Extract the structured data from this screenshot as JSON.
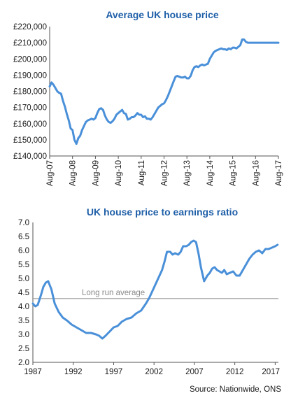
{
  "colors": {
    "title": "#1f5fa8",
    "line": "#4a90d9",
    "axis": "#555555",
    "reference": "#999999",
    "annotation": "#8a8a8a"
  },
  "chart_data": [
    {
      "type": "line",
      "title": "Average UK house price",
      "xlabel": "",
      "ylabel": "",
      "ylim": [
        140000,
        220000
      ],
      "y_ticks": [
        140000,
        150000,
        160000,
        170000,
        180000,
        190000,
        200000,
        210000,
        220000
      ],
      "y_tick_labels": [
        "£140,000",
        "£150,000",
        "£160,000",
        "£170,000",
        "£180,000",
        "£190,000",
        "£200,000",
        "£210,000",
        "£220,000"
      ],
      "x_tick_labels": [
        "Aug-07",
        "Aug-08",
        "Aug-09",
        "Aug-10",
        "Aug-11",
        "Aug-12",
        "Aug-13",
        "Aug-14",
        "Aug-15",
        "Aug-16",
        "Aug-17"
      ],
      "x_tick_dates": [
        "2007-08",
        "2008-08",
        "2009-08",
        "2010-08",
        "2011-08",
        "2012-08",
        "2013-08",
        "2014-08",
        "2015-08",
        "2016-08",
        "2017-08"
      ],
      "x_tick_positions": [
        0,
        12,
        24,
        36,
        48,
        60,
        72,
        84,
        96,
        108,
        120
      ],
      "xlim": [
        0,
        120
      ],
      "grid": false,
      "series": [
        {
          "name": "",
          "x": [
            0,
            1,
            2,
            3,
            4,
            5,
            6,
            7,
            8,
            9,
            10,
            11,
            12,
            13,
            14,
            15,
            16,
            17,
            18,
            19,
            20,
            21,
            22,
            23,
            24,
            25,
            26,
            27,
            28,
            29,
            30,
            31,
            32,
            33,
            34,
            35,
            36,
            37,
            38,
            39,
            40,
            41,
            42,
            43,
            44,
            45,
            46,
            47,
            48,
            49,
            50,
            51,
            52,
            53,
            54,
            55,
            56,
            57,
            58,
            59,
            60,
            61,
            62,
            63,
            64,
            65,
            66,
            67,
            68,
            69,
            70,
            71,
            72,
            73,
            74,
            75,
            76,
            77,
            78,
            79,
            80,
            81,
            82,
            83,
            84,
            85,
            86,
            87,
            88,
            89,
            90,
            91,
            92,
            93,
            94,
            95,
            96,
            97,
            98,
            99,
            100,
            101,
            102,
            103,
            104,
            105,
            106,
            107,
            108,
            109,
            110,
            111,
            112,
            113,
            114,
            115,
            116,
            117,
            118,
            119,
            120
          ],
          "values": [
            183000,
            185500,
            184000,
            182000,
            180000,
            179000,
            178500,
            174000,
            170500,
            166000,
            162000,
            157000,
            156000,
            150000,
            147500,
            151000,
            152500,
            156000,
            158500,
            161000,
            162000,
            162500,
            163000,
            162500,
            163500,
            166500,
            169000,
            169500,
            168500,
            165000,
            162500,
            161000,
            160500,
            161500,
            163000,
            165500,
            166500,
            167500,
            168500,
            166500,
            166000,
            162500,
            163000,
            164000,
            164000,
            165000,
            166500,
            165500,
            165500,
            164000,
            164500,
            163000,
            163000,
            162500,
            164000,
            166000,
            168000,
            170000,
            171000,
            172000,
            172500,
            174500,
            177000,
            180000,
            183000,
            186000,
            189000,
            189500,
            189000,
            188500,
            188500,
            189000,
            188000,
            188000,
            189500,
            193000,
            195000,
            195500,
            195000,
            196000,
            196500,
            196000,
            196500,
            197000,
            200000,
            202000,
            204000,
            205000,
            205500,
            206000,
            206500,
            206000,
            206000,
            205500,
            206500,
            206000,
            207000,
            207000,
            206500,
            207500,
            208500,
            212000,
            212000,
            210500,
            210000,
            210000,
            210000,
            210000,
            210000,
            210000,
            210000,
            210000,
            210000,
            210000,
            210000,
            210000,
            210000,
            210000,
            210000,
            210000,
            210000
          ]
        }
      ]
    },
    {
      "type": "line",
      "title": "UK house price to earnings ratio",
      "xlabel": "",
      "ylabel": "",
      "ylim": [
        2.0,
        7.0
      ],
      "y_ticks": [
        2.0,
        2.5,
        3.0,
        3.5,
        4.0,
        4.5,
        5.0,
        5.5,
        6.0,
        6.5,
        7.0
      ],
      "y_tick_labels": [
        "2.0",
        "2.5",
        "3.0",
        "3.5",
        "4.0",
        "4.5",
        "5.0",
        "5.5",
        "6.0",
        "6.5",
        "7.0"
      ],
      "x_tick_labels": [
        "1987",
        "1992",
        "1997",
        "2002",
        "2007",
        "2012",
        "2017"
      ],
      "x_ticks": [
        1987,
        1992,
        1997,
        2002,
        2007,
        2012,
        2017
      ],
      "xlim": [
        1987,
        2017.4
      ],
      "grid": false,
      "reference_line": {
        "label": "Long run average",
        "value": 4.28
      },
      "series": [
        {
          "name": "",
          "x": [
            1987.0,
            1987.3,
            1987.6,
            1988.0,
            1988.3,
            1988.6,
            1988.9,
            1989.3,
            1989.7,
            1990.2,
            1990.7,
            1991.2,
            1991.8,
            1992.4,
            1993.0,
            1993.6,
            1994.2,
            1994.8,
            1995.2,
            1995.6,
            1996.0,
            1996.5,
            1997.0,
            1997.5,
            1998.0,
            1998.6,
            1999.2,
            1999.8,
            2000.4,
            2001.0,
            2001.4,
            2001.8,
            2002.2,
            2002.6,
            2003.0,
            2003.3,
            2003.6,
            2004.0,
            2004.3,
            2004.6,
            2005.0,
            2005.3,
            2005.6,
            2006.0,
            2006.3,
            2006.6,
            2006.9,
            2007.2,
            2007.5,
            2007.8,
            2008.2,
            2008.6,
            2008.9,
            2009.2,
            2009.5,
            2009.8,
            2010.1,
            2010.4,
            2010.7,
            2011.0,
            2011.4,
            2011.8,
            2012.2,
            2012.6,
            2013.0,
            2013.4,
            2013.8,
            2014.2,
            2014.6,
            2015.0,
            2015.4,
            2015.8,
            2016.2,
            2016.6,
            2017.0,
            2017.3
          ],
          "values": [
            4.1,
            4.0,
            4.05,
            4.4,
            4.7,
            4.85,
            4.9,
            4.6,
            4.1,
            3.8,
            3.6,
            3.5,
            3.35,
            3.25,
            3.15,
            3.05,
            3.05,
            3.0,
            2.95,
            2.85,
            2.95,
            3.1,
            3.25,
            3.3,
            3.45,
            3.55,
            3.6,
            3.75,
            3.85,
            4.1,
            4.3,
            4.55,
            4.8,
            5.05,
            5.3,
            5.6,
            5.95,
            5.95,
            5.85,
            5.9,
            5.85,
            5.95,
            6.15,
            6.15,
            6.2,
            6.3,
            6.35,
            6.3,
            5.9,
            5.4,
            4.9,
            5.1,
            5.2,
            5.35,
            5.4,
            5.3,
            5.25,
            5.2,
            5.3,
            5.15,
            5.2,
            5.25,
            5.1,
            5.1,
            5.3,
            5.5,
            5.7,
            5.85,
            5.95,
            6.0,
            5.9,
            6.05,
            6.05,
            6.1,
            6.15,
            6.2
          ]
        }
      ]
    }
  ],
  "source": "Source: Nationwide, ONS"
}
